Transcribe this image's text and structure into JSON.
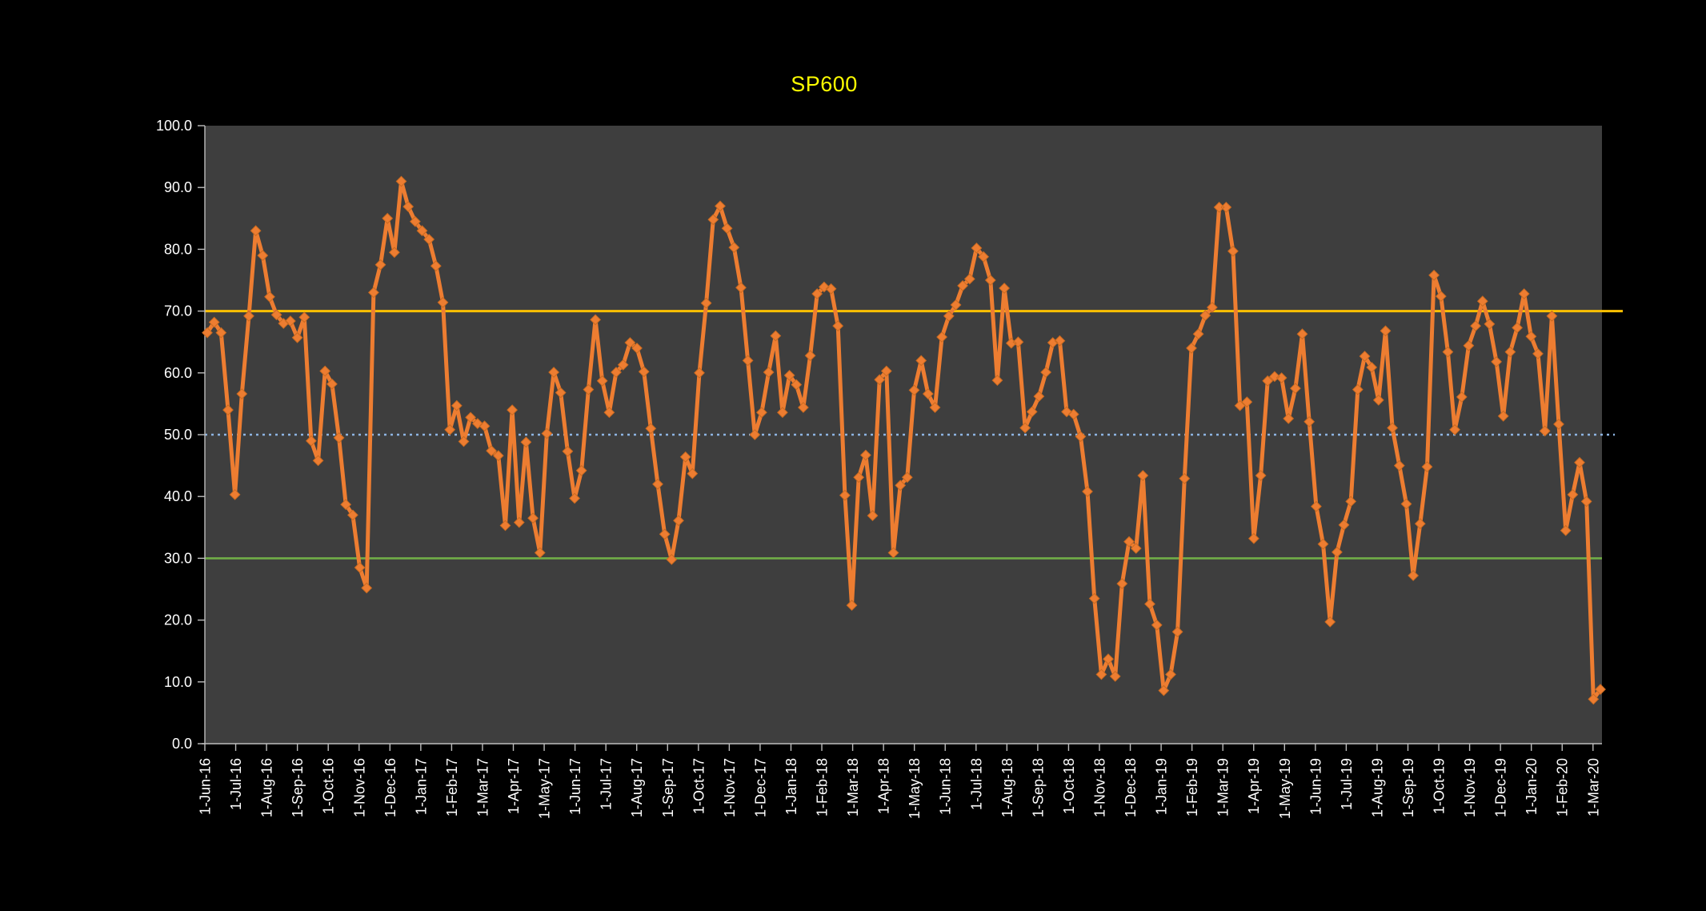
{
  "title": {
    "text": "SP600",
    "color": "#FFFF00"
  },
  "chart_data": {
    "type": "line",
    "title": "SP600",
    "x_unit": "weekly observations, Jun 2016 - Mar 2020",
    "x_tick_labels": [
      "1-Jun-16",
      "1-Jul-16",
      "1-Aug-16",
      "1-Sep-16",
      "1-Oct-16",
      "1-Nov-16",
      "1-Dec-16",
      "1-Jan-17",
      "1-Feb-17",
      "1-Mar-17",
      "1-Apr-17",
      "1-May-17",
      "1-Jun-17",
      "1-Jul-17",
      "1-Aug-17",
      "1-Sep-17",
      "1-Oct-17",
      "1-Nov-17",
      "1-Dec-17",
      "1-Jan-18",
      "1-Feb-18",
      "1-Mar-18",
      "1-Apr-18",
      "1-May-18",
      "1-Jun-18",
      "1-Jul-18",
      "1-Aug-18",
      "1-Sep-18",
      "1-Oct-18",
      "1-Nov-18",
      "1-Dec-18",
      "1-Jan-19",
      "1-Feb-19",
      "1-Mar-19",
      "1-Apr-19",
      "1-May-19",
      "1-Jun-19",
      "1-Jul-19",
      "1-Aug-19",
      "1-Sep-19",
      "1-Oct-19",
      "1-Nov-19",
      "1-Dec-19",
      "1-Jan-20",
      "1-Feb-20",
      "1-Mar-20"
    ],
    "y_tick_labels": [
      "0.0",
      "10.0",
      "20.0",
      "30.0",
      "40.0",
      "50.0",
      "60.0",
      "70.0",
      "80.0",
      "90.0",
      "100.0"
    ],
    "ylim": [
      0,
      100
    ],
    "grid": "off",
    "legend": "none",
    "series": [
      {
        "name": "SP600",
        "color": "#ED7D31",
        "marker": "diamond",
        "values": [
          66.5,
          68.2,
          66.5,
          54.0,
          40.3,
          56.6,
          69.2,
          83.0,
          79.0,
          72.3,
          69.4,
          68.0,
          68.4,
          65.7,
          69.0,
          49.0,
          45.8,
          60.3,
          58.2,
          49.5,
          38.7,
          37.0,
          28.5,
          25.2,
          73.0,
          77.5,
          85.0,
          79.5,
          91.0,
          86.9,
          84.5,
          83.0,
          81.6,
          77.3,
          71.4,
          50.8,
          54.7,
          48.9,
          52.8,
          51.8,
          51.4,
          47.4,
          46.6,
          35.3,
          54.0,
          35.8,
          48.8,
          36.5,
          30.9,
          50.2,
          60.1,
          56.8,
          47.3,
          39.7,
          44.2,
          57.3,
          68.6,
          58.7,
          53.6,
          60.1,
          61.3,
          64.9,
          64.0,
          60.2,
          51.0,
          42.0,
          33.9,
          29.8,
          36.1,
          46.4,
          43.7,
          60.0,
          71.3,
          84.8,
          87.0,
          83.4,
          80.3,
          73.8,
          62.0,
          50.0,
          53.6,
          60.1,
          66.0,
          53.6,
          59.6,
          58.1,
          54.4,
          62.8,
          72.8,
          73.9,
          73.6,
          67.6,
          40.2,
          22.4,
          43.1,
          46.7,
          36.9,
          58.9,
          60.3,
          30.9,
          41.8,
          43.1,
          57.2,
          62.0,
          56.6,
          54.4,
          65.8,
          69.2,
          71.0,
          74.1,
          75.2,
          80.2,
          78.8,
          75.0,
          58.8,
          73.7,
          64.8,
          65.0,
          51.1,
          53.7,
          56.2,
          60.1,
          64.9,
          65.2,
          53.7,
          53.3,
          49.7,
          40.8,
          23.5,
          11.2,
          13.7,
          10.9,
          25.9,
          32.7,
          31.6,
          43.4,
          22.6,
          19.2,
          8.6,
          11.2,
          18.1,
          42.9,
          64.0,
          66.3,
          69.3,
          70.6,
          86.8,
          86.8,
          79.7,
          54.7,
          55.3,
          33.2,
          43.4,
          58.7,
          59.4,
          59.2,
          52.6,
          57.5,
          66.3,
          52.1,
          38.4,
          32.3,
          19.7,
          31.0,
          35.4,
          39.2,
          57.3,
          62.7,
          60.9,
          55.6,
          66.8,
          51.1,
          45.0,
          38.8,
          27.2,
          35.6,
          44.8,
          75.8,
          72.4,
          63.4,
          50.8,
          56.1,
          64.4,
          67.6,
          71.6,
          67.9,
          61.8,
          53.0,
          63.4,
          67.3,
          72.8,
          65.9,
          63.1,
          50.6,
          69.2,
          51.7,
          34.5,
          40.3,
          45.5,
          39.2,
          7.2,
          8.8
        ]
      }
    ],
    "reference_lines": [
      {
        "level": 70,
        "color": "#FFC000",
        "style": "solid"
      },
      {
        "level": 50,
        "color": "#8DB4E2",
        "style": "dotted"
      },
      {
        "level": 30,
        "color": "#70AD47",
        "style": "solid"
      }
    ],
    "colors": {
      "page_background": "#000000",
      "plot_background": "#3E3E3E",
      "axis_line": "#BDBDBD",
      "axis_text": "#FFFFFF"
    }
  }
}
